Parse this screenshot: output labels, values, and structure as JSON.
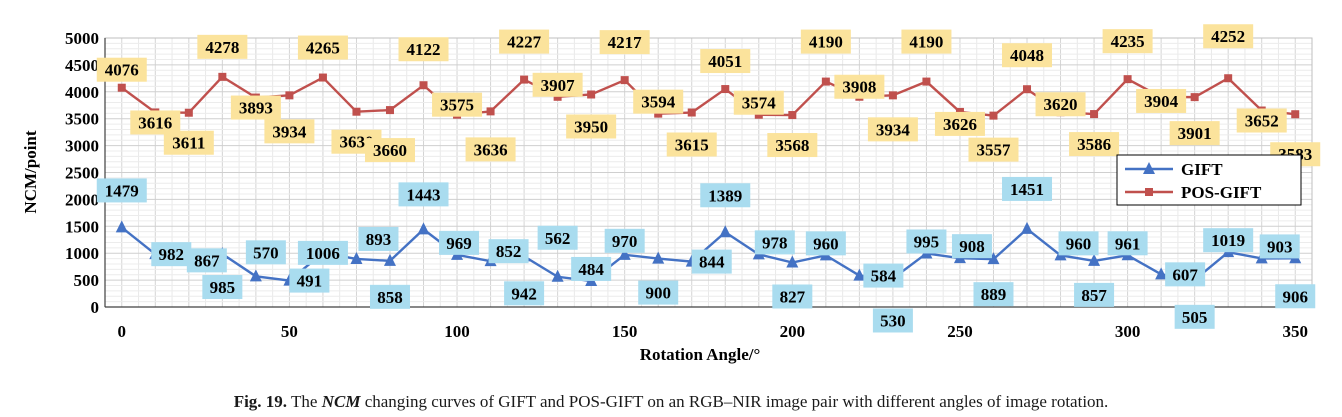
{
  "caption": {
    "fig": "Fig. 19.",
    "pre": "The",
    "ncm": "NCM",
    "post": "changing curves of GIFT and POS-GIFT on an RGB–NIR image pair with different angles of image rotation."
  },
  "colors": {
    "gift": "#4472c4",
    "pos_gift": "#c0504d",
    "gift_label_bg": "#a9dcef",
    "pos_label_bg": "#fbe39c"
  },
  "chart_data": {
    "type": "line",
    "xlabel": "Rotation Angle/°",
    "ylabel": "NCM/point",
    "xlim": [
      -5,
      355
    ],
    "ylim": [
      0,
      5000
    ],
    "xticks": [
      0,
      50,
      100,
      150,
      200,
      250,
      300,
      350
    ],
    "yticks": [
      0,
      500,
      1000,
      1500,
      2000,
      2500,
      3000,
      3500,
      4000,
      4500,
      5000
    ],
    "grid": true,
    "legend": "right",
    "x": [
      0,
      10,
      20,
      30,
      40,
      50,
      60,
      70,
      80,
      90,
      100,
      110,
      120,
      130,
      140,
      150,
      160,
      170,
      180,
      190,
      200,
      210,
      220,
      230,
      240,
      250,
      260,
      270,
      280,
      290,
      300,
      310,
      320,
      330,
      340,
      350
    ],
    "series": [
      {
        "name": "GIFT",
        "marker": "triangle",
        "values": [
          1479,
          982,
          867,
          985,
          570,
          491,
          1006,
          893,
          858,
          1443,
          969,
          852,
          942,
          562,
          484,
          970,
          900,
          844,
          1389,
          978,
          827,
          960,
          584,
          530,
          995,
          908,
          889,
          1451,
          960,
          857,
          961,
          607,
          505,
          1019,
          903,
          906
        ]
      },
      {
        "name": "POS-GIFT",
        "marker": "square",
        "values": [
          4076,
          3616,
          3611,
          4278,
          3893,
          3934,
          4265,
          3630,
          3660,
          4122,
          3575,
          3636,
          4227,
          3907,
          3950,
          4217,
          3594,
          3615,
          4051,
          3574,
          3568,
          4190,
          3908,
          3934,
          4190,
          3626,
          3557,
          4048,
          3620,
          3586,
          4235,
          3904,
          3901,
          4252,
          3652,
          3583
        ]
      }
    ]
  }
}
